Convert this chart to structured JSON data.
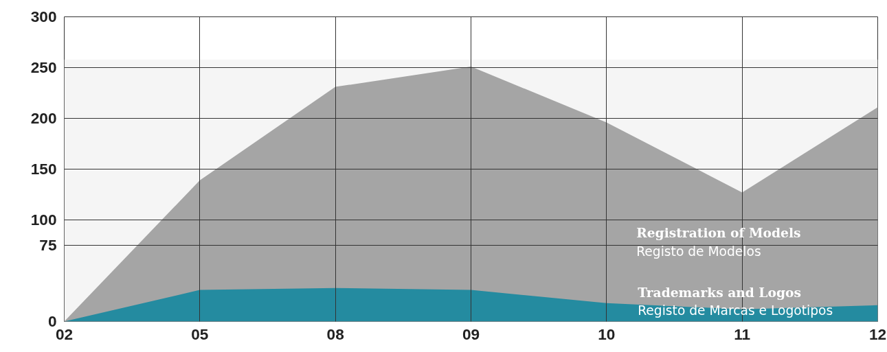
{
  "chart_data": {
    "type": "area",
    "categories": [
      "02",
      "05",
      "08",
      "09",
      "10",
      "11",
      "12"
    ],
    "series": [
      {
        "name": "Registration of Models",
        "color": "#a5a5a5",
        "values": [
          0,
          139,
          231,
          251,
          196,
          127,
          211
        ]
      },
      {
        "name": "Trademarks and Logos",
        "color": "#248ba0",
        "values": [
          0,
          31,
          33,
          31,
          18,
          12,
          16
        ]
      }
    ],
    "annotations": [
      "Registo de Modelos",
      "Registo de Marcas e Logotipos"
    ],
    "ylim": [
      0,
      300
    ],
    "yticks": [
      0,
      75,
      100,
      150,
      200,
      250,
      300
    ],
    "bands": [
      {
        "axis": "y",
        "from": 0,
        "to": 258,
        "color": "#f5f5f5"
      }
    ],
    "grid": true
  }
}
